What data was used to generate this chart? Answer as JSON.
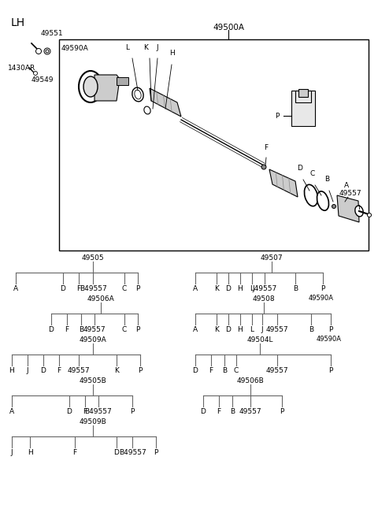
{
  "bg_color": "#ffffff",
  "fig_width": 4.8,
  "fig_height": 6.55,
  "dpi": 100,
  "title_lh": "LH",
  "main_label": "49500A"
}
